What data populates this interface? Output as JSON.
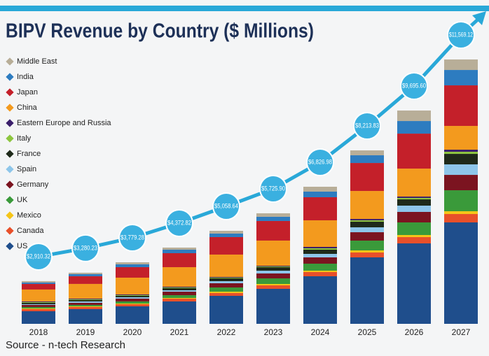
{
  "chart_data": {
    "type": "stacked_bar",
    "title": "BIPV Revenue by Country ($ Millions)",
    "source": "Source - n-tech Research",
    "categories": [
      "2018",
      "2019",
      "2020",
      "2021",
      "2022",
      "2023",
      "2024",
      "2025",
      "2026",
      "2027"
    ],
    "series": [
      {
        "name": "US",
        "color": "#1f4e8c",
        "values": [
          551,
          643,
          765,
          979,
          1224,
          1530,
          2081,
          2907,
          3519,
          4437
        ]
      },
      {
        "name": "Canada",
        "color": "#e8502a",
        "values": [
          92,
          92,
          92,
          122,
          122,
          153,
          184,
          214,
          275,
          367
        ]
      },
      {
        "name": "Mexico",
        "color": "#f5c518",
        "values": [
          31,
          31,
          31,
          31,
          61,
          61,
          61,
          92,
          92,
          122
        ]
      },
      {
        "name": "UK",
        "color": "#3a9a3a",
        "values": [
          61,
          61,
          92,
          122,
          184,
          245,
          306,
          428,
          551,
          918
        ]
      },
      {
        "name": "Germany",
        "color": "#7b1420",
        "values": [
          92,
          92,
          122,
          153,
          184,
          214,
          275,
          367,
          459,
          673
        ]
      },
      {
        "name": "Spain",
        "color": "#8ec6ea",
        "values": [
          31,
          61,
          61,
          61,
          92,
          122,
          153,
          214,
          275,
          459
        ]
      },
      {
        "name": "France",
        "color": "#1f2a1a",
        "values": [
          61,
          61,
          61,
          92,
          122,
          153,
          184,
          245,
          275,
          459
        ]
      },
      {
        "name": "Italy",
        "color": "#8dc63f",
        "values": [
          31,
          31,
          31,
          31,
          31,
          31,
          61,
          61,
          61,
          92
        ]
      },
      {
        "name": "Eastern Europe and Russia",
        "color": "#3b1f6b",
        "values": [
          31,
          31,
          31,
          31,
          31,
          31,
          61,
          61,
          61,
          92
        ]
      },
      {
        "name": "China",
        "color": "#f39a1e",
        "values": [
          520,
          643,
          734,
          857,
          979,
          1102,
          1163,
          1224,
          1224,
          1040
        ]
      },
      {
        "name": "Japan",
        "color": "#c4202a",
        "values": [
          245,
          337,
          459,
          612,
          765,
          857,
          1010,
          1224,
          1530,
          1775
        ]
      },
      {
        "name": "India",
        "color": "#2d7cc0",
        "values": [
          61,
          92,
          122,
          153,
          153,
          184,
          245,
          337,
          551,
          673
        ]
      },
      {
        "name": "Middle East",
        "color": "#b8ae98",
        "values": [
          61,
          61,
          92,
          92,
          122,
          153,
          214,
          214,
          459,
          459
        ]
      }
    ],
    "totals": {
      "color": "#29a8d8",
      "values": [
        2910.32,
        3280.23,
        3779.28,
        4372.82,
        5058.64,
        5725.9,
        6826.98,
        8213.83,
        9695.6,
        11569.12
      ],
      "value_labels": [
        "$2,910.32",
        "$3,280.23",
        "$3,779.28",
        "$4,372.82",
        "$5,058.64",
        "$5,725.90",
        "$6,826.98",
        "$8,213.83",
        "$9,695.60",
        "$11,569.12"
      ]
    }
  }
}
